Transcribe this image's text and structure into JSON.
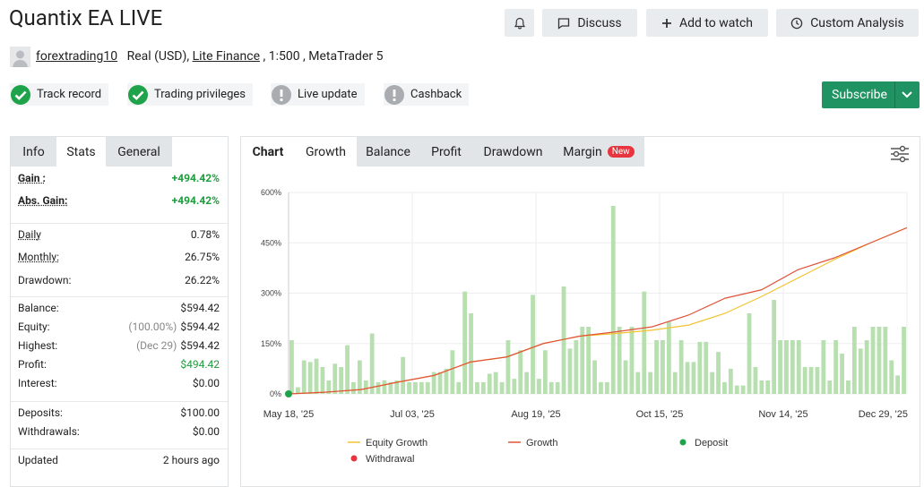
{
  "header": {
    "title": "Quantix EA LIVE",
    "buttons": [
      "Discuss",
      "Add to watch",
      "Custom Analysis"
    ],
    "user": "forextrading10",
    "account_type": "Real (USD),",
    "broker": "Lite Finance",
    "details": ", 1:500 , MetaTrader 5"
  },
  "badges": [
    {
      "label": "Track record",
      "verified": true
    },
    {
      "label": "Trading privileges",
      "verified": true
    },
    {
      "label": "Live update",
      "verified": false
    },
    {
      "label": "Cashback",
      "verified": false
    }
  ],
  "subscribe": "Subscribe",
  "stats": {
    "tabs": [
      "Info",
      "Stats",
      "General"
    ],
    "active_tab": 1,
    "groups": [
      [
        {
          "label": "Gain :",
          "value": "+494.42%",
          "highlight": true,
          "underline": true
        },
        {
          "label": "Abs. Gain:",
          "value": "+494.42%",
          "highlight": true,
          "underline": true
        }
      ],
      [
        {
          "label": "Daily",
          "value": "0.78%",
          "underline": true
        },
        {
          "label": "Monthly:",
          "value": "26.75%",
          "underline": true
        },
        {
          "label": "Drawdown:",
          "value": "26.22%"
        }
      ],
      [
        {
          "label": "Balance:",
          "value": "$594.42"
        },
        {
          "label": "Equity:",
          "note": "(100.00%)",
          "value": "$594.42"
        },
        {
          "label": "Highest:",
          "note": "(Dec 29)",
          "value": "$594.42"
        },
        {
          "label": "Profit:",
          "value": "$494.42",
          "highlight": true
        },
        {
          "label": "Interest:",
          "value": "$0.00"
        }
      ],
      [
        {
          "label": "Deposits:",
          "value": "$100.00"
        },
        {
          "label": "Withdrawals:",
          "value": "$0.00"
        }
      ],
      [
        {
          "label": "Updated",
          "value": "2 hours ago"
        }
      ]
    ]
  },
  "chart_tabs": {
    "title": "Chart",
    "tabs": [
      "Growth",
      "Balance",
      "Profit",
      "Drawdown",
      "Margin"
    ],
    "badge": "New",
    "active_tab": 0
  },
  "chart_data": {
    "type": "combo",
    "ylim": [
      0,
      600
    ],
    "yticks": [
      {
        "value": 0,
        "label": "0%"
      },
      {
        "value": 150,
        "label": "150%"
      },
      {
        "value": 300,
        "label": "300%"
      },
      {
        "value": 450,
        "label": "450%"
      },
      {
        "value": 600,
        "label": "600%"
      }
    ],
    "x_labels": [
      "May 18, '25",
      "Jul 03, '25",
      "Aug 19, '25",
      "Oct 15, '25",
      "Nov 14, '25",
      "Dec 29, '25"
    ],
    "grid": true,
    "bars": {
      "color": "#b8dfb0",
      "values": [
        160,
        20,
        100,
        95,
        105,
        80,
        40,
        90,
        80,
        145,
        35,
        100,
        40,
        180,
        35,
        40,
        35,
        40,
        110,
        35,
        35,
        35,
        35,
        65,
        65,
        75,
        130,
        35,
        305,
        240,
        35,
        35,
        60,
        65,
        35,
        160,
        45,
        130,
        65,
        295,
        45,
        130,
        35,
        35,
        320,
        135,
        160,
        200,
        200,
        100,
        35,
        35,
        560,
        200,
        100,
        200,
        65,
        305,
        65,
        160,
        160,
        215,
        65,
        160,
        95,
        95,
        155,
        155,
        65,
        125,
        35,
        75,
        25,
        25,
        240,
        80,
        40,
        40,
        280,
        160,
        160,
        160,
        160,
        80,
        80,
        80,
        160,
        40,
        160,
        120,
        40,
        200,
        135,
        160,
        200,
        200,
        200,
        100,
        55,
        200
      ]
    },
    "series": [
      {
        "name": "Equity Growth",
        "type": "line",
        "color": "#f2c230",
        "values": [
          0,
          5,
          13,
          35,
          55,
          95,
          110,
          150,
          172,
          180,
          190,
          205,
          240,
          290,
          345,
          400,
          450,
          495
        ]
      },
      {
        "name": "Growth",
        "type": "line",
        "color": "#e0533a",
        "values": [
          0,
          5,
          13,
          35,
          55,
          95,
          110,
          150,
          172,
          185,
          200,
          235,
          285,
          310,
          370,
          405,
          450,
          495
        ]
      },
      {
        "name": "Deposit",
        "type": "point",
        "color": "#1fa34a",
        "values": [
          0
        ]
      },
      {
        "name": "Withdrawal",
        "type": "point",
        "color": "#e8343e",
        "values": []
      }
    ]
  }
}
